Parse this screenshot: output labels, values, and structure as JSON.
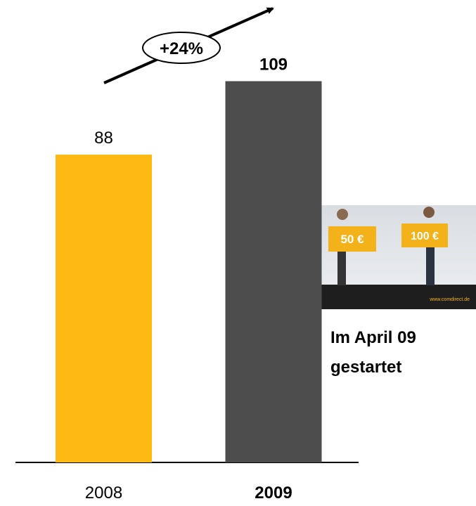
{
  "chart_data": {
    "type": "bar",
    "categories": [
      "2008",
      "2009"
    ],
    "values": [
      88,
      109
    ],
    "colors": [
      "#FDB813",
      "#4D4D4D"
    ],
    "bold": [
      false,
      true
    ],
    "annotation": "+24%",
    "note": [
      "Im April 09",
      "gestartet"
    ],
    "image_texts": [
      "50 €",
      "100 €",
      "www.comdirect.de"
    ]
  }
}
